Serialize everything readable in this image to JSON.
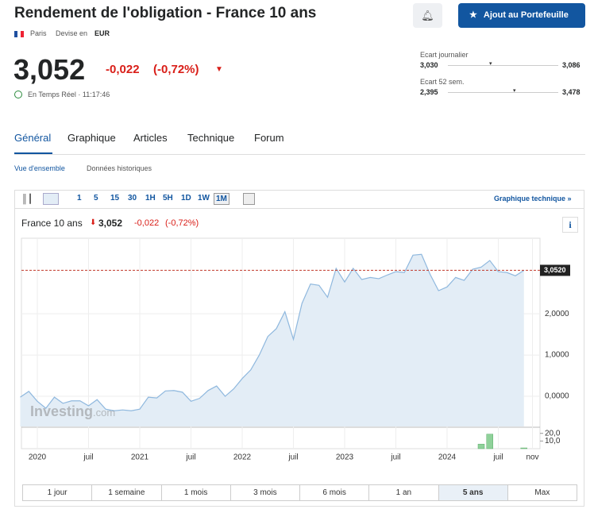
{
  "header": {
    "title": "Rendement de l'obligation - France 10 ans",
    "exchange": "Paris",
    "currency_label": "Devise en",
    "currency": "EUR",
    "portfolio_button": "Ajout au Portefeuille"
  },
  "quote": {
    "price": "3,052",
    "change": "-0,022",
    "change_pct": "(-0,72%)",
    "status": "En Temps Réel · 11:17:46"
  },
  "ranges": [
    {
      "label": "Ecart journalier",
      "low": "3,030",
      "high": "3,086"
    },
    {
      "label": "Ecart 52 sem.",
      "low": "2,395",
      "high": "3,478"
    }
  ],
  "tabs": [
    "Général",
    "Graphique",
    "Articles",
    "Technique",
    "Forum"
  ],
  "subtabs": [
    "Vue d'ensemble",
    "Données historiques"
  ],
  "chart_toolbar": {
    "intervals": [
      "1",
      "5",
      "15",
      "30",
      "1H",
      "5H",
      "1D",
      "1W",
      "1M"
    ],
    "active_interval": 8,
    "technical_link": "Graphique technique »"
  },
  "chart_header": {
    "name": "France 10 ans",
    "price": "3,052",
    "change": "-0,022",
    "change_pct": "(-0,72%)"
  },
  "watermark": {
    "brand": "Investing",
    "suffix": ".com"
  },
  "chart": {
    "type": "line",
    "color": "#8fb8de",
    "fill": "#e3edf6",
    "grid": true,
    "categories": [
      null,
      null,
      "2020",
      null,
      null,
      null,
      null,
      null,
      "juil",
      null,
      null,
      null,
      null,
      null,
      "2021",
      null,
      null,
      null,
      null,
      null,
      "juil",
      null,
      null,
      null,
      null,
      null,
      "2022",
      null,
      null,
      null,
      null,
      null,
      "juil",
      null,
      null,
      null,
      null,
      null,
      "2023",
      null,
      null,
      null,
      null,
      null,
      "juil",
      null,
      null,
      null,
      null,
      null,
      "2024",
      null,
      null,
      null,
      null,
      null,
      "juil",
      null,
      null,
      null,
      "nov"
    ],
    "values": [
      -0.02,
      0.12,
      -0.12,
      -0.29,
      -0.02,
      -0.17,
      -0.11,
      -0.11,
      -0.23,
      -0.08,
      -0.31,
      -0.35,
      -0.33,
      -0.35,
      -0.31,
      -0.02,
      -0.04,
      0.13,
      0.14,
      0.1,
      -0.12,
      -0.05,
      0.14,
      0.25,
      0.0,
      0.18,
      0.43,
      0.64,
      1.0,
      1.45,
      1.64,
      2.05,
      1.38,
      2.25,
      2.72,
      2.69,
      2.4,
      3.1,
      2.77,
      3.1,
      2.83,
      2.88,
      2.85,
      2.94,
      3.02,
      3.0,
      3.42,
      3.44,
      2.96,
      2.56,
      2.65,
      2.88,
      2.81,
      3.08,
      3.13,
      3.29,
      3.02,
      3.0,
      2.92,
      3.05,
      null
    ],
    "ylim": [
      -0.73,
      3.83
    ],
    "yticks": [
      {
        "value": 0,
        "label": "0,0000"
      },
      {
        "value": 1,
        "label": "1,0000"
      },
      {
        "value": 2,
        "label": "2,0000"
      }
    ],
    "price_line": {
      "value": 3.052,
      "label": "3,0520",
      "color": "#c0392b"
    },
    "volume": {
      "color": "#8fd19a",
      "ylim": [
        0,
        28
      ],
      "yticks": [
        {
          "value": 10,
          "label": "10,0"
        },
        {
          "value": 20,
          "label": "20,0"
        }
      ],
      "values": [
        null,
        null,
        null,
        null,
        null,
        null,
        null,
        null,
        null,
        null,
        null,
        null,
        null,
        null,
        null,
        null,
        null,
        null,
        null,
        null,
        null,
        null,
        null,
        null,
        null,
        null,
        null,
        null,
        null,
        null,
        null,
        null,
        null,
        null,
        null,
        null,
        null,
        null,
        null,
        null,
        null,
        null,
        null,
        null,
        null,
        null,
        null,
        null,
        null,
        null,
        null,
        null,
        null,
        null,
        6,
        19,
        null,
        null,
        null,
        1,
        null
      ]
    }
  },
  "periods": [
    "1 jour",
    "1 semaine",
    "1 mois",
    "3 mois",
    "6 mois",
    "1 an",
    "5 ans",
    "Max"
  ],
  "active_period": 6
}
